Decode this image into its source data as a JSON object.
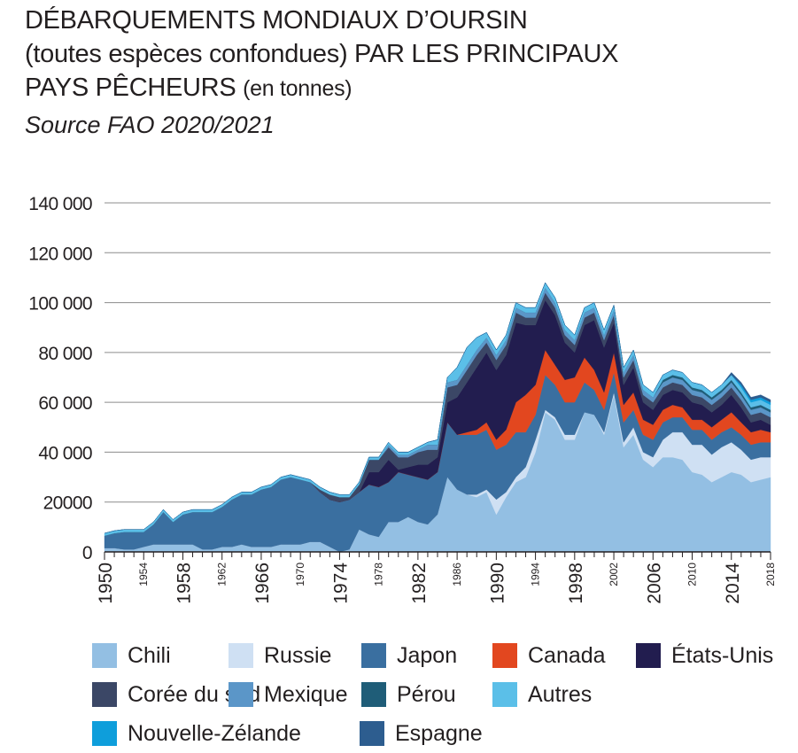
{
  "title": {
    "line1": "DÉBARQUEMENTS MONDIAUX D’OURSIN",
    "line2": "(toutes espèces confondues) PAR LES PRINCIPAUX",
    "line3_main": "PAYS PÊCHEURS",
    "line3_small": "(en tonnes)",
    "source": "Source FAO 2020/2021"
  },
  "chart_data": {
    "type": "area",
    "stacked": true,
    "title": "DÉBARQUEMENTS MONDIAUX D’OURSIN (toutes espèces confondues) PAR LES PRINCIPAUX PAYS PÊCHEURS (en tonnes)",
    "subtitle": "Source FAO 2020/2021",
    "xlim": [
      1950,
      2018
    ],
    "ylim": [
      0,
      140000
    ],
    "yticks": [
      0,
      20000,
      40000,
      60000,
      80000,
      100000,
      120000,
      140000
    ],
    "ytick_labels": [
      "0",
      "20000",
      "40 000",
      "60 000",
      "80 000",
      "100 000",
      "120 000",
      "140 000"
    ],
    "xtick_labels": [
      {
        "label": "1950",
        "year": 1950,
        "size": "big"
      },
      {
        "label": "1954",
        "year": 1954,
        "size": "small"
      },
      {
        "label": "1958",
        "year": 1958,
        "size": "big"
      },
      {
        "label": "1962",
        "year": 1962,
        "size": "small"
      },
      {
        "label": "1966",
        "year": 1966,
        "size": "big"
      },
      {
        "label": "1970",
        "year": 1970,
        "size": "small"
      },
      {
        "label": "1974",
        "year": 1974,
        "size": "big"
      },
      {
        "label": "1978",
        "year": 1978,
        "size": "small"
      },
      {
        "label": "1982",
        "year": 1982,
        "size": "big"
      },
      {
        "label": "1986",
        "year": 1986,
        "size": "small"
      },
      {
        "label": "1990",
        "year": 1990,
        "size": "big"
      },
      {
        "label": "1994",
        "year": 1994,
        "size": "small"
      },
      {
        "label": "1998",
        "year": 1998,
        "size": "big"
      },
      {
        "label": "2002",
        "year": 2002,
        "size": "small"
      },
      {
        "label": "2006",
        "year": 2006,
        "size": "big"
      },
      {
        "label": "2010",
        "year": 2010,
        "size": "small"
      },
      {
        "label": "2014",
        "year": 2014,
        "size": "big"
      },
      {
        "label": "2018",
        "year": 2018,
        "size": "small"
      }
    ],
    "grid": true,
    "legend_position": "bottom",
    "x": [
      1950,
      1951,
      1952,
      1953,
      1954,
      1955,
      1956,
      1957,
      1958,
      1959,
      1960,
      1961,
      1962,
      1963,
      1964,
      1965,
      1966,
      1967,
      1968,
      1969,
      1970,
      1971,
      1972,
      1973,
      1974,
      1975,
      1976,
      1977,
      1978,
      1979,
      1980,
      1981,
      1982,
      1983,
      1984,
      1985,
      1986,
      1987,
      1988,
      1989,
      1990,
      1991,
      1992,
      1993,
      1994,
      1995,
      1996,
      1997,
      1998,
      1999,
      2000,
      2001,
      2002,
      2003,
      2004,
      2005,
      2006,
      2007,
      2008,
      2009,
      2010,
      2011,
      2012,
      2013,
      2014,
      2015,
      2016,
      2017,
      2018
    ],
    "series": [
      {
        "name": "Chili",
        "color": "#93bfe3",
        "values": [
          1500,
          1500,
          1000,
          1000,
          2000,
          3000,
          3000,
          3000,
          3000,
          3000,
          1000,
          1000,
          2000,
          2000,
          3000,
          2000,
          2000,
          2000,
          3000,
          3000,
          3000,
          4000,
          4000,
          2000,
          0,
          1000,
          9000,
          7000,
          6000,
          12000,
          12000,
          14000,
          12000,
          11000,
          15000,
          30000,
          25000,
          23000,
          22000,
          24000,
          15000,
          22000,
          28000,
          30000,
          40000,
          56000,
          53000,
          45000,
          45000,
          56000,
          55000,
          47000,
          63000,
          42000,
          47000,
          37000,
          34000,
          38000,
          38000,
          37000,
          32000,
          31000,
          28000,
          30000,
          32000,
          31000,
          28000,
          29000,
          30000
        ]
      },
      {
        "name": "Russie",
        "color": "#cfe0f3",
        "values": [
          0,
          0,
          0,
          0,
          0,
          0,
          0,
          0,
          0,
          0,
          0,
          0,
          0,
          0,
          0,
          0,
          0,
          0,
          0,
          0,
          0,
          0,
          0,
          0,
          0,
          0,
          0,
          0,
          0,
          0,
          0,
          0,
          0,
          0,
          0,
          0,
          0,
          0,
          1000,
          1000,
          6000,
          2000,
          2000,
          4000,
          5000,
          1000,
          1000,
          2000,
          2000,
          0,
          0,
          1000,
          1000,
          2000,
          3000,
          3000,
          4000,
          7000,
          10000,
          11000,
          11000,
          12000,
          11000,
          12000,
          12000,
          10000,
          9000,
          9000,
          8000
        ]
      },
      {
        "name": "Japon",
        "color": "#3a6fa0",
        "values": [
          5000,
          6000,
          7000,
          7000,
          6000,
          8000,
          13000,
          9000,
          12000,
          13000,
          15000,
          15000,
          16000,
          19000,
          20000,
          21000,
          23000,
          24000,
          26000,
          27000,
          26000,
          24000,
          20000,
          19000,
          20000,
          20000,
          15000,
          20000,
          20000,
          16000,
          20000,
          17000,
          18000,
          18000,
          17000,
          22000,
          22000,
          24000,
          24000,
          24000,
          20000,
          19000,
          18000,
          14000,
          10000,
          14000,
          13000,
          13000,
          13000,
          12000,
          10000,
          9000,
          8000,
          8000,
          7000,
          7000,
          7000,
          7000,
          6000,
          6000,
          6000,
          6000,
          6000,
          6000,
          6000,
          6000,
          6000,
          6000,
          6000
        ]
      },
      {
        "name": "Canada",
        "color": "#e2471f",
        "values": [
          0,
          0,
          0,
          0,
          0,
          0,
          0,
          0,
          0,
          0,
          0,
          0,
          0,
          0,
          0,
          0,
          0,
          0,
          0,
          0,
          0,
          0,
          0,
          0,
          0,
          0,
          0,
          0,
          0,
          0,
          0,
          0,
          0,
          0,
          0,
          0,
          0,
          1000,
          2000,
          3000,
          4000,
          6000,
          12000,
          15000,
          12000,
          10000,
          8000,
          9000,
          10000,
          10000,
          8000,
          7000,
          8000,
          7000,
          7000,
          6000,
          6000,
          5000,
          5000,
          4000,
          4000,
          4000,
          5000,
          5000,
          6000,
          5000,
          5000,
          5000,
          4000
        ]
      },
      {
        "name": "États-Unis",
        "color": "#221d4f",
        "values": [
          0,
          0,
          0,
          0,
          0,
          0,
          0,
          0,
          0,
          0,
          0,
          0,
          0,
          0,
          0,
          0,
          0,
          0,
          0,
          0,
          0,
          0,
          0,
          0,
          0,
          0,
          0,
          5000,
          6000,
          9000,
          1000,
          3000,
          5000,
          6000,
          6000,
          8000,
          15000,
          20000,
          25000,
          28000,
          28000,
          30000,
          32000,
          28000,
          24000,
          20000,
          20000,
          15000,
          10000,
          13000,
          20000,
          18000,
          12000,
          8000,
          10000,
          7000,
          6000,
          6000,
          6000,
          6000,
          7000,
          6000,
          6000,
          6000,
          7000,
          6000,
          4000,
          4000,
          3000
        ]
      },
      {
        "name": "Corée du sud",
        "color": "#3b4766",
        "values": [
          0,
          0,
          0,
          0,
          0,
          0,
          0,
          0,
          0,
          0,
          0,
          0,
          0,
          0,
          0,
          0,
          0,
          0,
          0,
          0,
          0,
          0,
          1000,
          2000,
          2000,
          1000,
          3000,
          5000,
          5000,
          5000,
          5000,
          4000,
          5000,
          6000,
          3000,
          6000,
          5000,
          5000,
          5000,
          4000,
          4000,
          4000,
          4000,
          3000,
          3000,
          3000,
          3000,
          3000,
          3000,
          3000,
          3000,
          3000,
          3000,
          3000,
          3000,
          3000,
          3000,
          3000,
          3000,
          3000,
          3000,
          3000,
          3000,
          3000,
          3000,
          3000,
          3000,
          3000,
          3000
        ]
      },
      {
        "name": "Mexique",
        "color": "#5b96c8",
        "values": [
          0,
          0,
          0,
          0,
          0,
          0,
          0,
          0,
          0,
          0,
          0,
          0,
          0,
          0,
          0,
          0,
          0,
          0,
          0,
          0,
          0,
          0,
          0,
          0,
          0,
          0,
          0,
          0,
          0,
          1000,
          1000,
          1000,
          1000,
          2000,
          2000,
          2000,
          2000,
          2000,
          2000,
          2000,
          2000,
          2000,
          2000,
          2000,
          2000,
          2000,
          2000,
          2000,
          2000,
          2000,
          2000,
          2000,
          2000,
          2000,
          2000,
          2000,
          2000,
          2000,
          2000,
          2000,
          2000,
          2000,
          2000,
          2000,
          2000,
          2000,
          2000,
          2000,
          2000
        ]
      },
      {
        "name": "Pérou",
        "color": "#1f5d78",
        "values": [
          0,
          0,
          0,
          0,
          0,
          0,
          0,
          0,
          0,
          0,
          0,
          0,
          0,
          0,
          0,
          0,
          0,
          0,
          0,
          0,
          0,
          0,
          0,
          0,
          0,
          0,
          0,
          0,
          0,
          0,
          0,
          0,
          0,
          0,
          0,
          0,
          0,
          0,
          0,
          0,
          0,
          0,
          0,
          0,
          0,
          0,
          0,
          0,
          0,
          0,
          0,
          0,
          0,
          0,
          0,
          0,
          0,
          1000,
          1000,
          1000,
          1000,
          1000,
          1000,
          1000,
          1000,
          1000,
          1000,
          1000,
          1000
        ]
      },
      {
        "name": "Autres",
        "color": "#5bbfe8",
        "values": [
          1000,
          1000,
          1000,
          1000,
          1000,
          1000,
          1000,
          1000,
          1000,
          1000,
          1000,
          1000,
          1000,
          1000,
          1000,
          1000,
          1000,
          1000,
          1000,
          1000,
          1000,
          1000,
          1000,
          1000,
          1000,
          1000,
          1000,
          1000,
          1000,
          1000,
          1000,
          1000,
          1000,
          1000,
          2000,
          2000,
          5000,
          7000,
          5000,
          2000,
          2000,
          2000,
          2000,
          2000,
          2000,
          2000,
          2000,
          2000,
          2000,
          2000,
          2000,
          2000,
          2000,
          2000,
          2000,
          2000,
          2000,
          2000,
          2000,
          2000,
          2000,
          2000,
          2000,
          2000,
          2000,
          2000,
          2000,
          2000,
          2000
        ]
      },
      {
        "name": "Nouvelle-Zélande",
        "color": "#0e9edb",
        "values": [
          0,
          0,
          0,
          0,
          0,
          0,
          0,
          0,
          0,
          0,
          0,
          0,
          0,
          0,
          0,
          0,
          0,
          0,
          0,
          0,
          0,
          0,
          0,
          0,
          0,
          0,
          0,
          0,
          0,
          0,
          0,
          0,
          0,
          0,
          0,
          0,
          0,
          0,
          0,
          0,
          0,
          0,
          0,
          0,
          0,
          0,
          0,
          0,
          0,
          0,
          0,
          0,
          0,
          0,
          0,
          0,
          0,
          0,
          0,
          0,
          0,
          0,
          0,
          0,
          0,
          1000,
          1000,
          1000,
          1000
        ]
      },
      {
        "name": "Espagne",
        "color": "#2d5d8f",
        "values": [
          0,
          0,
          0,
          0,
          0,
          0,
          0,
          0,
          0,
          0,
          0,
          0,
          0,
          0,
          0,
          0,
          0,
          0,
          0,
          0,
          0,
          0,
          0,
          0,
          0,
          0,
          0,
          0,
          0,
          0,
          0,
          0,
          0,
          0,
          0,
          0,
          0,
          0,
          0,
          0,
          0,
          0,
          0,
          0,
          0,
          0,
          0,
          0,
          0,
          0,
          0,
          0,
          0,
          0,
          0,
          0,
          0,
          0,
          0,
          0,
          0,
          0,
          0,
          0,
          1000,
          1000,
          1000,
          1000,
          1000
        ]
      }
    ]
  },
  "legend_rows": [
    [
      "Chili",
      "Russie",
      "Japon",
      "Canada",
      "États-Unis"
    ],
    [
      "Corée du sud",
      "Mexique",
      "Pérou",
      "Autres"
    ],
    [
      "Nouvelle-Zélande",
      "Espagne"
    ]
  ]
}
